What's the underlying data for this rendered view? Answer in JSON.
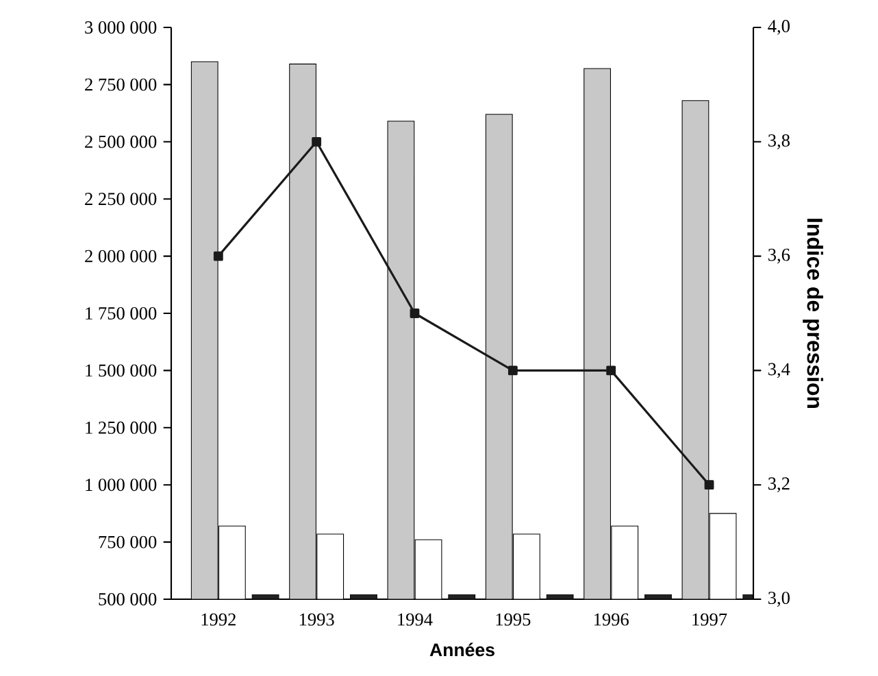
{
  "chart_data": {
    "type": "bar",
    "categories": [
      "1992",
      "1993",
      "1994",
      "1995",
      "1996",
      "1997"
    ],
    "xlabel": "Années",
    "y2label": "Indice de pression",
    "series": [
      {
        "color": "#c8c8c8",
        "values": [
          2850000,
          2840000,
          2590000,
          2620000,
          2820000,
          2680000
        ]
      },
      {
        "color": "#ffffff",
        "values": [
          820000,
          785000,
          760000,
          785000,
          820000,
          875000
        ]
      },
      {
        "color": "#222222",
        "values": [
          520000,
          520000,
          520000,
          520000,
          520000,
          520000
        ]
      },
      {
        "type": "line",
        "axis": "y2",
        "color": "#1a1a1a",
        "marker": "square",
        "values": [
          3.6,
          3.8,
          3.5,
          3.4,
          3.4,
          3.2
        ]
      }
    ],
    "ylim": [
      500000,
      3000000
    ],
    "yticks": [
      {
        "value": 500000,
        "label": "500 000"
      },
      {
        "value": 750000,
        "label": "750 000"
      },
      {
        "value": 1000000,
        "label": "1 000 000"
      },
      {
        "value": 1250000,
        "label": "1 250 000"
      },
      {
        "value": 1500000,
        "label": "1 500 000"
      },
      {
        "value": 1750000,
        "label": "1 750 000"
      },
      {
        "value": 2000000,
        "label": "2 000 000"
      },
      {
        "value": 2250000,
        "label": "2 250 000"
      },
      {
        "value": 2500000,
        "label": "2 500 000"
      },
      {
        "value": 2750000,
        "label": "2 750 000"
      },
      {
        "value": 3000000,
        "label": "3 000 000"
      }
    ],
    "y2lim": [
      3.0,
      4.0
    ],
    "y2ticks": [
      {
        "value": 3.0,
        "label": "3,0"
      },
      {
        "value": 3.2,
        "label": "3,2"
      },
      {
        "value": 3.4,
        "label": "3,4"
      },
      {
        "value": 3.6,
        "label": "3,6"
      },
      {
        "value": 3.8,
        "label": "3,8"
      },
      {
        "value": 4.0,
        "label": "4,0"
      }
    ]
  }
}
